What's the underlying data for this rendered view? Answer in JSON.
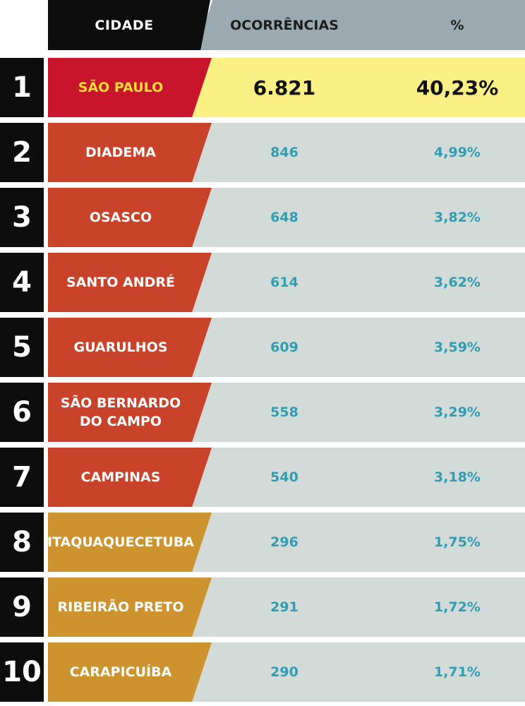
{
  "chart_data": {
    "type": "table",
    "columns": [
      "CIDADE",
      "OCORRÊNCIAS",
      "%"
    ],
    "rows": [
      {
        "rank": "1",
        "city": "SÃO PAULO",
        "occurrences": "6.821",
        "percent": "40,23%",
        "color": "#c8152b"
      },
      {
        "rank": "2",
        "city": "DIADEMA",
        "occurrences": "846",
        "percent": "4,99%",
        "color": "#c9432a"
      },
      {
        "rank": "3",
        "city": "OSASCO",
        "occurrences": "648",
        "percent": "3,82%",
        "color": "#c9432a"
      },
      {
        "rank": "4",
        "city": "SANTO ANDRÉ",
        "occurrences": "614",
        "percent": "3,62%",
        "color": "#c9432a"
      },
      {
        "rank": "5",
        "city": "GUARULHOS",
        "occurrences": "609",
        "percent": "3,59%",
        "color": "#c9432a"
      },
      {
        "rank": "6",
        "city": "SÃO BERNARDO DO CAMPO",
        "occurrences": "558",
        "percent": "3,29%",
        "color": "#c9432a"
      },
      {
        "rank": "7",
        "city": "CAMPINAS",
        "occurrences": "540",
        "percent": "3,18%",
        "color": "#c9432a"
      },
      {
        "rank": "8",
        "city": "ITAQUAQUECETUBA",
        "occurrences": "296",
        "percent": "1,75%",
        "color": "#cc932e"
      },
      {
        "rank": "9",
        "city": "RIBEIRÃO PRETO",
        "occurrences": "291",
        "percent": "1,72%",
        "color": "#cc932e"
      },
      {
        "rank": "10",
        "city": "CARAPICUÍBA",
        "occurrences": "290",
        "percent": "1,71%",
        "color": "#cc932e"
      }
    ]
  }
}
